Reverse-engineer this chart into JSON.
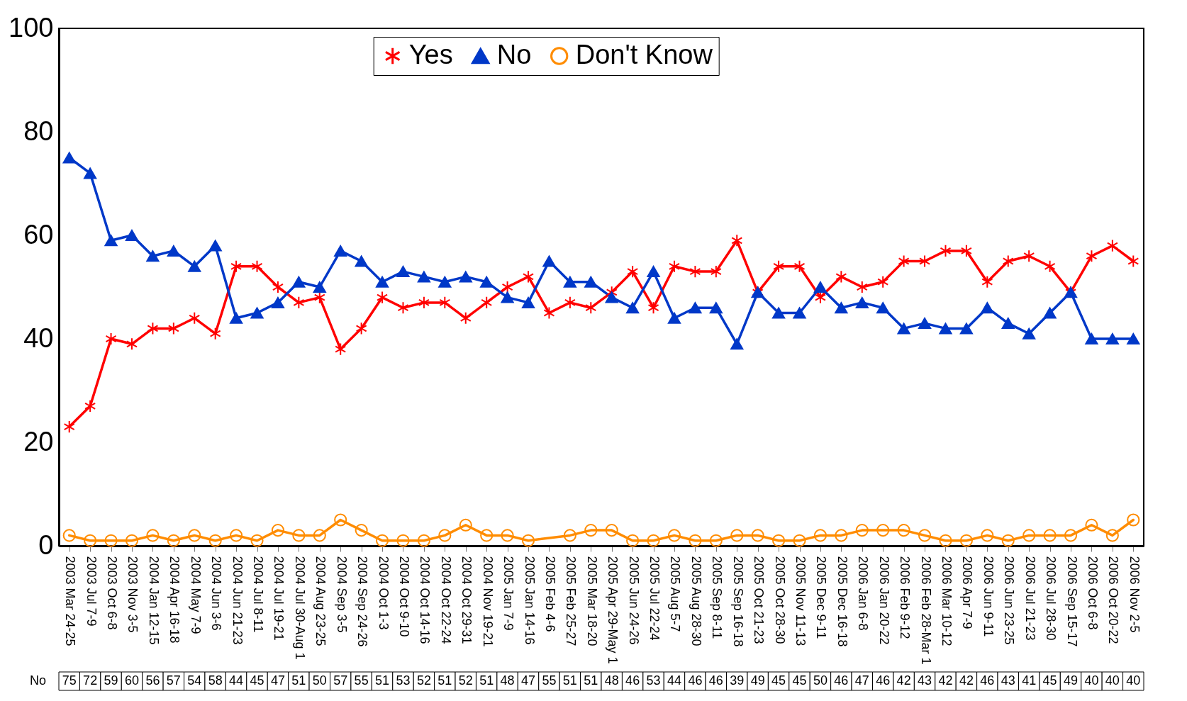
{
  "chart_data": {
    "type": "line",
    "categories": [
      "2003 Mar 24-25",
      "2003 Jul 7-9",
      "2003 Oct 6-8",
      "2003 Nov 3-5",
      "2004 Jan 12-15",
      "2004 Apr 16-18",
      "2004 May 7-9",
      "2004 Jun 3-6",
      "2004 Jun 21-23",
      "2004 Jul 8-11",
      "2004 Jul 19-21",
      "2004 Jul 30-Aug 1",
      "2004 Aug 23-25",
      "2004 Sep 3-5",
      "2004 Sep 24-26",
      "2004 Oct 1-3",
      "2004 Oct 9-10",
      "2004 Oct 14-16",
      "2004 Oct 22-24",
      "2004 Oct 29-31",
      "2004 Nov 19-21",
      "2005 Jan 7-9",
      "2005 Jan 14-16",
      "2005 Feb 4-6",
      "2005 Feb 25-27",
      "2005 Mar 18-20",
      "2005 Apr 29-May 1",
      "2005 Jun 24-26",
      "2005 Jul 22-24",
      "2005 Aug 5-7",
      "2005 Aug 28-30",
      "2005 Sep 8-11",
      "2005 Sep 16-18",
      "2005 Oct 21-23",
      "2005 Oct 28-30",
      "2005 Nov 11-13",
      "2005 Dec 9-11",
      "2005 Dec 16-18",
      "2006 Jan 6-8",
      "2006 Jan 20-22",
      "2006 Feb 9-12",
      "2006 Feb 28-Mar 1",
      "2006 Mar 10-12",
      "2006 Apr 7-9",
      "2006 Jun 9-11",
      "2006 Jun 23-25",
      "2006 Jul 21-23",
      "2006 Jul 28-30",
      "2006 Sep 15-17",
      "2006 Oct 6-8",
      "2006 Oct 20-22",
      "2006 Nov 2-5"
    ],
    "ylim": [
      0,
      100
    ],
    "yticks": [
      0,
      20,
      40,
      60,
      80,
      100
    ],
    "grid": false,
    "legend": "top",
    "series": [
      {
        "name": "Yes",
        "color": "#ff0000",
        "marker": "cross",
        "values": [
          23,
          27,
          40,
          39,
          42,
          42,
          44,
          41,
          54,
          54,
          50,
          47,
          48,
          38,
          42,
          48,
          46,
          47,
          47,
          44,
          47,
          50,
          52,
          45,
          47,
          46,
          49,
          53,
          46,
          54,
          53,
          53,
          59,
          49,
          54,
          54,
          48,
          52,
          50,
          51,
          55,
          55,
          57,
          57,
          51,
          55,
          56,
          54,
          49,
          56,
          58,
          55
        ]
      },
      {
        "name": "No",
        "color": "#0038c8",
        "marker": "triangle",
        "values": [
          75,
          72,
          59,
          60,
          56,
          57,
          54,
          58,
          44,
          45,
          47,
          51,
          50,
          57,
          55,
          51,
          53,
          52,
          51,
          52,
          51,
          48,
          47,
          55,
          51,
          51,
          48,
          46,
          53,
          44,
          46,
          46,
          39,
          49,
          45,
          45,
          50,
          46,
          47,
          46,
          42,
          43,
          42,
          42,
          46,
          43,
          41,
          45,
          49,
          40,
          40,
          40
        ],
        "value_labels": [
          "75",
          "72",
          "59",
          "60",
          "56",
          "57",
          "54",
          "58",
          "44",
          "45",
          "47",
          "51",
          "50",
          "57",
          "55",
          "51",
          "53",
          "52",
          "51",
          "52",
          "51",
          "48",
          "47",
          "55",
          "51",
          "51",
          "48",
          "46",
          "53",
          "44",
          "46",
          "46",
          "39",
          "49",
          "45",
          "45",
          "50",
          "46",
          "47",
          "46",
          "42",
          "43",
          "42",
          "42",
          "46",
          "43",
          "41",
          "45",
          "49",
          "40",
          "40",
          "40"
        ]
      },
      {
        "name": "Don't Know",
        "color": "#ff8c00",
        "marker": "circle",
        "values": [
          2,
          1,
          1,
          1,
          2,
          1,
          2,
          1,
          2,
          1,
          3,
          2,
          2,
          5,
          3,
          1,
          1,
          1,
          2,
          4,
          2,
          2,
          1,
          null,
          2,
          3,
          3,
          1,
          1,
          2,
          1,
          1,
          2,
          2,
          1,
          1,
          2,
          2,
          3,
          3,
          3,
          2,
          1,
          1,
          2,
          1,
          2,
          2,
          2,
          4,
          2,
          5
        ]
      }
    ]
  }
}
